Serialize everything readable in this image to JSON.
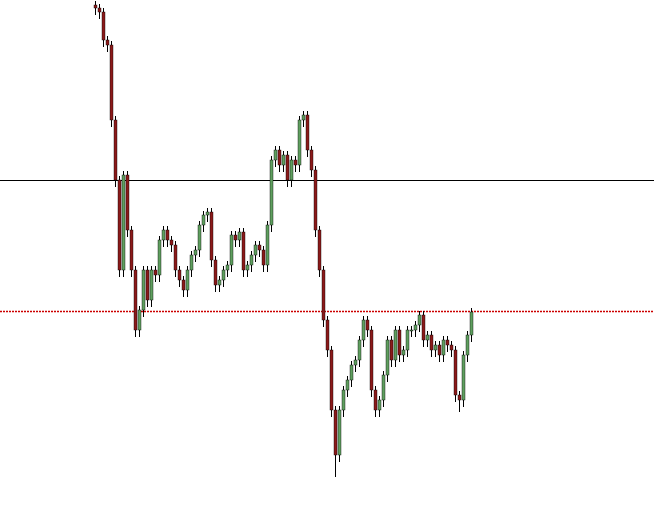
{
  "chart_data": {
    "type": "candlestick",
    "ylim": [
      0,
      507
    ],
    "up_color": "#5f9f5f",
    "down_color": "#8b1a1a",
    "wick_color": "#000000",
    "horizontal_lines": [
      {
        "value": 327,
        "color": "#000000",
        "style": "solid"
      },
      {
        "value": 196,
        "color": "#cc0000",
        "style": "dotted"
      }
    ],
    "open": [
      502,
      499,
      495,
      467,
      462,
      387,
      327,
      237,
      332,
      277,
      237,
      177,
      197,
      237,
      207,
      237,
      232,
      267,
      277,
      267,
      262,
      237,
      227,
      217,
      237,
      252,
      257,
      282,
      292,
      295,
      247,
      222,
      227,
      237,
      242,
      272,
      267,
      275,
      237,
      242,
      252,
      262,
      257,
      242,
      282,
      347,
      357,
      342,
      352,
      327,
      347,
      342,
      387,
      392,
      357,
      337,
      277,
      237,
      187,
      157,
      97,
      52,
      97,
      117,
      127,
      142,
      147,
      167,
      187,
      177,
      117,
      97,
      107,
      132,
      167,
      147,
      177,
      152,
      157,
      177,
      177,
      182,
      192,
      167,
      172,
      157,
      162,
      152,
      167,
      162,
      157,
      112,
      107,
      152,
      172
    ],
    "high": [
      506,
      503,
      499,
      471,
      466,
      391,
      331,
      336,
      336,
      281,
      241,
      201,
      241,
      241,
      241,
      241,
      271,
      281,
      281,
      271,
      266,
      241,
      231,
      241,
      256,
      261,
      286,
      296,
      299,
      299,
      251,
      231,
      241,
      246,
      276,
      276,
      279,
      279,
      246,
      256,
      266,
      266,
      261,
      286,
      351,
      361,
      361,
      356,
      356,
      351,
      351,
      391,
      396,
      396,
      361,
      341,
      281,
      241,
      191,
      161,
      101,
      101,
      121,
      131,
      146,
      151,
      171,
      191,
      191,
      181,
      121,
      111,
      136,
      171,
      171,
      181,
      181,
      161,
      181,
      181,
      186,
      196,
      196,
      176,
      176,
      166,
      166,
      171,
      171,
      166,
      161,
      116,
      156,
      176,
      199
    ],
    "low": [
      492,
      488,
      460,
      455,
      380,
      320,
      230,
      230,
      270,
      230,
      170,
      170,
      190,
      200,
      200,
      225,
      225,
      260,
      260,
      255,
      230,
      220,
      210,
      210,
      230,
      245,
      250,
      275,
      285,
      240,
      215,
      215,
      220,
      230,
      235,
      260,
      260,
      230,
      230,
      235,
      245,
      250,
      235,
      235,
      275,
      340,
      335,
      335,
      320,
      320,
      335,
      335,
      380,
      350,
      330,
      270,
      230,
      180,
      150,
      90,
      30,
      45,
      90,
      110,
      120,
      135,
      140,
      160,
      170,
      110,
      90,
      90,
      100,
      125,
      140,
      140,
      145,
      145,
      150,
      170,
      170,
      175,
      160,
      160,
      150,
      150,
      145,
      145,
      155,
      150,
      105,
      95,
      100,
      145,
      165
    ],
    "close": [
      499,
      495,
      467,
      462,
      387,
      327,
      237,
      332,
      277,
      237,
      177,
      197,
      237,
      207,
      237,
      232,
      267,
      277,
      267,
      262,
      237,
      227,
      217,
      237,
      252,
      257,
      282,
      292,
      295,
      247,
      222,
      227,
      237,
      242,
      272,
      267,
      275,
      237,
      242,
      252,
      262,
      257,
      242,
      282,
      347,
      357,
      342,
      352,
      327,
      347,
      342,
      387,
      392,
      357,
      337,
      277,
      237,
      187,
      157,
      97,
      52,
      97,
      117,
      127,
      142,
      147,
      167,
      187,
      177,
      117,
      97,
      107,
      132,
      167,
      147,
      177,
      152,
      157,
      177,
      177,
      182,
      192,
      167,
      172,
      157,
      162,
      152,
      167,
      162,
      157,
      112,
      107,
      152,
      172,
      195
    ]
  }
}
